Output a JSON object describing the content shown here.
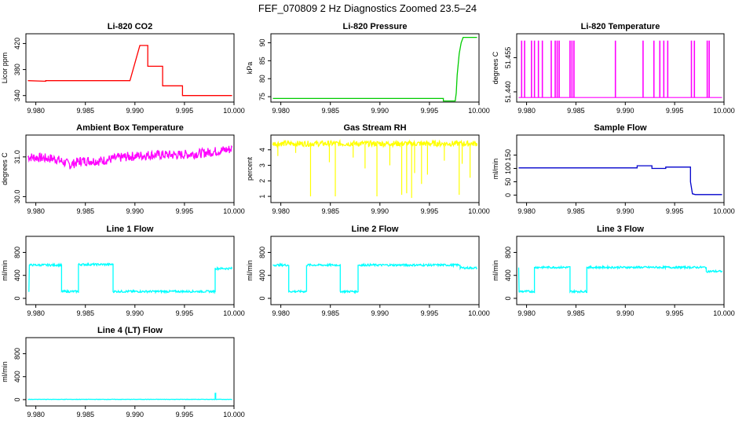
{
  "figure": {
    "title": "FEF_070809  2 Hz Diagnostics Zoomed 23.5–24"
  },
  "chart_data": [
    {
      "type": "line",
      "title": "Li-820 CO2",
      "ylabel": "Licor ppm",
      "color": "#ff0000",
      "xlim": [
        9.979,
        10.0
      ],
      "ylim": [
        330,
        435
      ],
      "xticks": [
        "9.980",
        "9.985",
        "9.990",
        "9.995",
        "10.000"
      ],
      "xtick_values": [
        9.98,
        9.985,
        9.99,
        9.995,
        10.0
      ],
      "yticks": [
        "340",
        "380",
        "420"
      ],
      "ytick_values": [
        340,
        380,
        420
      ],
      "series": [
        {
          "name": "CO2",
          "x": [
            9.9792,
            9.981,
            9.981,
            9.9895,
            9.9895,
            9.9905,
            9.9905,
            9.9913,
            9.9913,
            9.9928,
            9.9928,
            9.9948,
            9.9948,
            9.9982,
            9.9982,
            9.9998
          ],
          "y": [
            363,
            362,
            363,
            363,
            363,
            417,
            417,
            417,
            385,
            385,
            355,
            355,
            340,
            340,
            340,
            340
          ]
        }
      ]
    },
    {
      "type": "line",
      "title": "Li-820 Pressure",
      "ylabel": "kPa",
      "color": "#00cc00",
      "xlim": [
        9.979,
        10.0
      ],
      "ylim": [
        73.5,
        92.5
      ],
      "xticks": [
        "9.980",
        "9.985",
        "9.990",
        "9.995",
        "10.000"
      ],
      "xtick_values": [
        9.98,
        9.985,
        9.99,
        9.995,
        10.0
      ],
      "yticks": [
        "75",
        "80",
        "85",
        "90"
      ],
      "ytick_values": [
        75,
        80,
        85,
        90
      ],
      "series": [
        {
          "name": "Pressure",
          "x": [
            9.9792,
            9.9964,
            9.9964,
            9.9976,
            9.9977,
            9.9978,
            9.998,
            9.9982,
            9.9984,
            9.9998
          ],
          "y": [
            74.5,
            74.5,
            73.8,
            73.8,
            76,
            81,
            87,
            90,
            91.5,
            91.5
          ]
        }
      ]
    },
    {
      "type": "line",
      "title": "Li-820 Temperature",
      "ylabel": "degrees C",
      "color": "#ff00ff",
      "xlim": [
        9.979,
        10.0
      ],
      "ylim": [
        51.4355,
        51.4655
      ],
      "xticks": [
        "9.980",
        "9.985",
        "9.990",
        "9.995",
        "10.000"
      ],
      "xtick_values": [
        9.98,
        9.985,
        9.99,
        9.995,
        10.0
      ],
      "yticks": [
        "51.440",
        "51.455"
      ],
      "ytick_values": [
        51.44,
        51.455
      ],
      "baseline": 51.4375,
      "spike_top": 51.4625,
      "spikes": [
        9.9795,
        9.9798,
        9.9805,
        9.9808,
        9.9812,
        9.9816,
        9.9825,
        9.9829,
        9.9831,
        9.9833,
        9.9844,
        9.9846,
        9.9848,
        9.989,
        9.9918,
        9.9929,
        9.9935,
        9.9939,
        9.9943,
        9.9967,
        9.997,
        9.9983,
        9.9985
      ]
    },
    {
      "type": "line",
      "title": "Ambient Box Temperature",
      "ylabel": "degrees C",
      "color": "#ff00ff",
      "xlim": [
        9.979,
        10.0
      ],
      "ylim": [
        29.85,
        31.55
      ],
      "xticks": [
        "9.980",
        "9.985",
        "9.990",
        "9.995",
        "10.000"
      ],
      "xtick_values": [
        9.98,
        9.985,
        9.99,
        9.995,
        10.0
      ],
      "yticks": [
        "30.0",
        "31.0"
      ],
      "ytick_values": [
        30.0,
        31.0
      ],
      "series": [
        {
          "name": "Ambient",
          "x": [
            9.9792,
            9.982,
            9.9835,
            9.9845,
            9.9865,
            9.989,
            9.9915,
            9.9945,
            9.997,
            9.9998
          ],
          "y": [
            31.0,
            30.95,
            30.8,
            30.9,
            30.9,
            31.0,
            31.05,
            31.05,
            31.1,
            31.2
          ]
        }
      ],
      "noise": 0.12
    },
    {
      "type": "line",
      "title": "Gas Stream RH",
      "ylabel": "percent",
      "color": "#ffff00",
      "xlim": [
        9.979,
        10.0
      ],
      "ylim": [
        0.6,
        4.95
      ],
      "xticks": [
        "9.980",
        "9.985",
        "9.990",
        "9.995",
        "10.000"
      ],
      "xtick_values": [
        9.98,
        9.985,
        9.99,
        9.995,
        10.0
      ],
      "yticks": [
        "1",
        "2",
        "3",
        "4"
      ],
      "ytick_values": [
        1,
        2,
        3,
        4
      ],
      "series": [
        {
          "name": "RH",
          "x": [
            9.9792,
            9.9998
          ],
          "y": [
            4.4,
            4.4
          ]
        }
      ],
      "noise": 0.18,
      "dips": [
        [
          9.9797,
          3.6
        ],
        [
          9.9815,
          3.8
        ],
        [
          9.983,
          1.0
        ],
        [
          9.9849,
          3.2
        ],
        [
          9.9855,
          1.0
        ],
        [
          9.9873,
          3.5
        ],
        [
          9.9885,
          2.8
        ],
        [
          9.9897,
          1.0
        ],
        [
          9.991,
          3.0
        ],
        [
          9.9922,
          1.1
        ],
        [
          9.9927,
          1.2
        ],
        [
          9.9932,
          0.9
        ],
        [
          9.9935,
          2.5
        ],
        [
          9.9942,
          1.8
        ],
        [
          9.9948,
          2.4
        ],
        [
          9.9965,
          3.3
        ],
        [
          9.998,
          1.1
        ],
        [
          9.9983,
          3.1
        ],
        [
          9.9991,
          2.2
        ]
      ]
    },
    {
      "type": "line",
      "title": "Sample Flow",
      "ylabel": "ml/min",
      "color": "#0000cc",
      "xlim": [
        9.979,
        10.0
      ],
      "ylim": [
        -28,
        225
      ],
      "xticks": [
        "9.980",
        "9.985",
        "9.990",
        "9.995",
        "10.000"
      ],
      "xtick_values": [
        9.98,
        9.985,
        9.99,
        9.995,
        10.0
      ],
      "yticks": [
        "0",
        "50",
        "100",
        "150"
      ],
      "ytick_values": [
        0,
        50,
        100,
        150
      ],
      "series": [
        {
          "name": "SampleFlow",
          "x": [
            9.9792,
            9.9912,
            9.9912,
            9.9927,
            9.9927,
            9.9941,
            9.9941,
            9.9966,
            9.9966,
            9.9968,
            9.9971,
            9.9998
          ],
          "y": [
            102,
            102,
            110,
            110,
            100,
            100,
            105,
            105,
            50,
            5,
            2,
            2
          ]
        }
      ]
    },
    {
      "type": "line",
      "title": "Line 1 Flow",
      "ylabel": "ml/min",
      "color": "#00ffff",
      "xlim": [
        9.979,
        10.0
      ],
      "ylim": [
        -110,
        1080
      ],
      "xticks": [
        "9.980",
        "9.985",
        "9.990",
        "9.995",
        "10.000"
      ],
      "xtick_values": [
        9.98,
        9.985,
        9.99,
        9.995,
        10.0
      ],
      "yticks": [
        "0",
        "400",
        "800"
      ],
      "ytick_values": [
        0,
        400,
        800
      ],
      "series": [
        {
          "name": "Line1",
          "x": [
            9.9793,
            9.97935,
            9.9826,
            9.9826,
            9.9843,
            9.9843,
            9.9878,
            9.9878,
            9.9981,
            9.9981,
            9.9998
          ],
          "y": [
            120,
            580,
            580,
            120,
            120,
            590,
            590,
            120,
            120,
            520,
            520
          ]
        }
      ],
      "noise": 18
    },
    {
      "type": "line",
      "title": "Line 2 Flow",
      "ylabel": "ml/min",
      "color": "#00ffff",
      "xlim": [
        9.979,
        10.0
      ],
      "ylim": [
        -110,
        1080
      ],
      "xticks": [
        "9.980",
        "9.985",
        "9.990",
        "9.995",
        "10.000"
      ],
      "xtick_values": [
        9.98,
        9.985,
        9.99,
        9.995,
        10.0
      ],
      "yticks": [
        "0",
        "400",
        "800"
      ],
      "ytick_values": [
        0,
        400,
        800
      ],
      "series": [
        {
          "name": "Line2",
          "x": [
            9.9792,
            9.9808,
            9.9808,
            9.9826,
            9.9826,
            9.986,
            9.986,
            9.9878,
            9.9878,
            9.9981,
            9.9981,
            9.9998
          ],
          "y": [
            580,
            580,
            120,
            120,
            580,
            580,
            120,
            120,
            580,
            580,
            530,
            530
          ]
        }
      ],
      "noise": 18
    },
    {
      "type": "line",
      "title": "Line 3 Flow",
      "ylabel": "ml/min",
      "color": "#00ffff",
      "xlim": [
        9.979,
        10.0
      ],
      "ylim": [
        -110,
        1080
      ],
      "xticks": [
        "9.980",
        "9.985",
        "9.990",
        "9.995",
        "10.000"
      ],
      "xtick_values": [
        9.98,
        9.985,
        9.99,
        9.995,
        10.0
      ],
      "yticks": [
        "0",
        "400",
        "800"
      ],
      "ytick_values": [
        0,
        400,
        800
      ],
      "series": [
        {
          "name": "Line3",
          "x": [
            9.9792,
            9.97925,
            9.9808,
            9.9808,
            9.9844,
            9.9844,
            9.9861,
            9.9861,
            9.9982,
            9.9982,
            9.9998
          ],
          "y": [
            520,
            120,
            120,
            540,
            540,
            120,
            120,
            540,
            540,
            470,
            470
          ]
        }
      ],
      "noise": 18
    },
    {
      "type": "line",
      "title": "Line 4 (LT) Flow",
      "ylabel": "ml/min",
      "color": "#00ffff",
      "xlim": [
        9.979,
        10.0
      ],
      "ylim": [
        -110,
        1080
      ],
      "xticks": [
        "9.980",
        "9.985",
        "9.990",
        "9.995",
        "10.000"
      ],
      "xtick_values": [
        9.98,
        9.985,
        9.99,
        9.995,
        10.0
      ],
      "yticks": [
        "0",
        "400",
        "800"
      ],
      "ytick_values": [
        0,
        400,
        800
      ],
      "series": [
        {
          "name": "Line4",
          "x": [
            9.9792,
            9.9981,
            9.9981,
            9.99815,
            9.99815,
            9.9998
          ],
          "y": [
            5,
            5,
            110,
            110,
            5,
            5
          ]
        }
      ],
      "noise": 3
    }
  ]
}
